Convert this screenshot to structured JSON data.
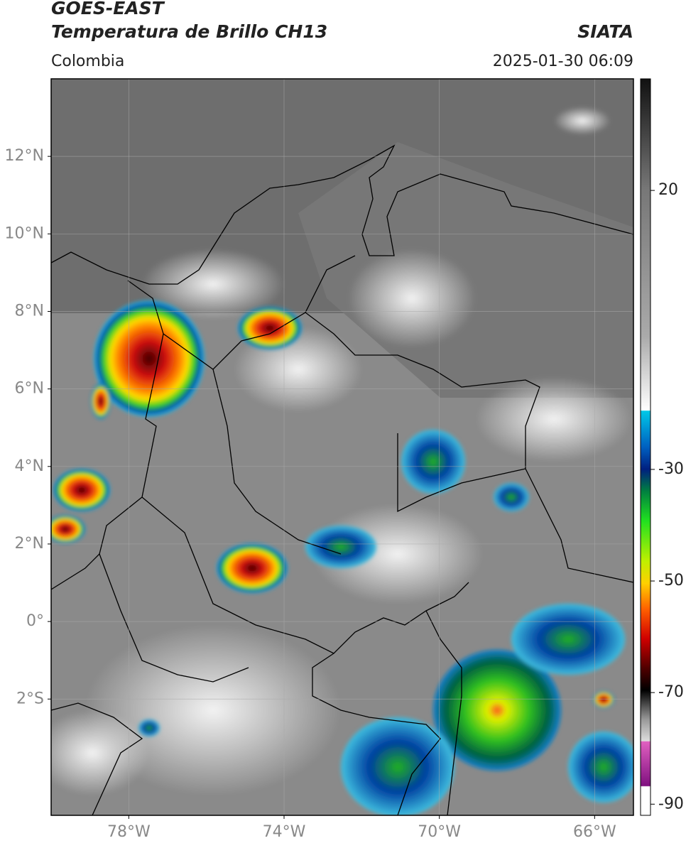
{
  "header": {
    "satellite": "GOES-EAST",
    "product": "Temperatura de Brillo CH13",
    "region": "Colombia",
    "source": "SIATA",
    "datetime": "2025-01-30 06:09"
  },
  "map": {
    "xlim": [
      -80,
      -65
    ],
    "xticks": [
      {
        "value": -78,
        "label": "78°W"
      },
      {
        "value": -74,
        "label": "74°W"
      },
      {
        "value": -70,
        "label": "70°W"
      },
      {
        "value": -66,
        "label": "66°W"
      }
    ],
    "ylim": [
      -5,
      14
    ],
    "yticks": [
      {
        "value": -2,
        "label": "2°S"
      },
      {
        "value": 0,
        "label": "0°"
      },
      {
        "value": 2,
        "label": "2°N"
      },
      {
        "value": 4,
        "label": "4°N"
      },
      {
        "value": 6,
        "label": "6°N"
      },
      {
        "value": 8,
        "label": "8°N"
      },
      {
        "value": 10,
        "label": "10°N"
      },
      {
        "value": 12,
        "label": "12°N"
      }
    ],
    "grid": true
  },
  "colorbar": {
    "lim": [
      -92,
      40
    ],
    "ticks": [
      20,
      -30,
      -50,
      -70,
      -90
    ]
  }
}
